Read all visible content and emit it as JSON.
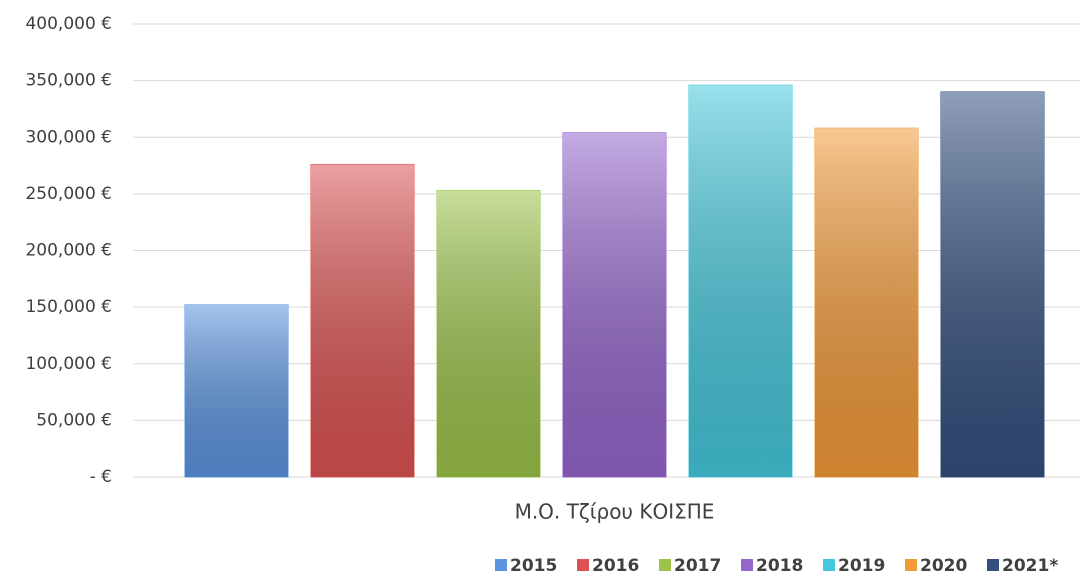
{
  "chart_data": {
    "type": "bar",
    "categories": [
      "Μ.Ο. Τζίρου ΚΟΙΣΠΕ"
    ],
    "series": [
      {
        "name": "2015",
        "color": "#5b95e0",
        "values": [
          152000
        ]
      },
      {
        "name": "2016",
        "color": "#dc5252",
        "values": [
          276000
        ]
      },
      {
        "name": "2017",
        "color": "#9cc34a",
        "values": [
          253000
        ]
      },
      {
        "name": "2018",
        "color": "#9466cc",
        "values": [
          304000
        ]
      },
      {
        "name": "2019",
        "color": "#45c8dc",
        "values": [
          346000
        ]
      },
      {
        "name": "2020",
        "color": "#f39a38",
        "values": [
          308000
        ]
      },
      {
        "name": "2021*",
        "color": "#34507f",
        "values": [
          340000
        ]
      }
    ],
    "ylim": [
      0,
      400000
    ],
    "yticks": [
      {
        "value": 0,
        "label": "- €"
      },
      {
        "value": 50000,
        "label": "50,000 €"
      },
      {
        "value": 100000,
        "label": "100,000 €"
      },
      {
        "value": 150000,
        "label": "150,000 €"
      },
      {
        "value": 200000,
        "label": "200,000 €"
      },
      {
        "value": 250000,
        "label": "250,000 €"
      },
      {
        "value": 300000,
        "label": "300,000 €"
      },
      {
        "value": 350000,
        "label": "350,000 €"
      },
      {
        "value": 400000,
        "label": "400,000 €"
      }
    ],
    "grid": true,
    "legend": "bottom"
  }
}
